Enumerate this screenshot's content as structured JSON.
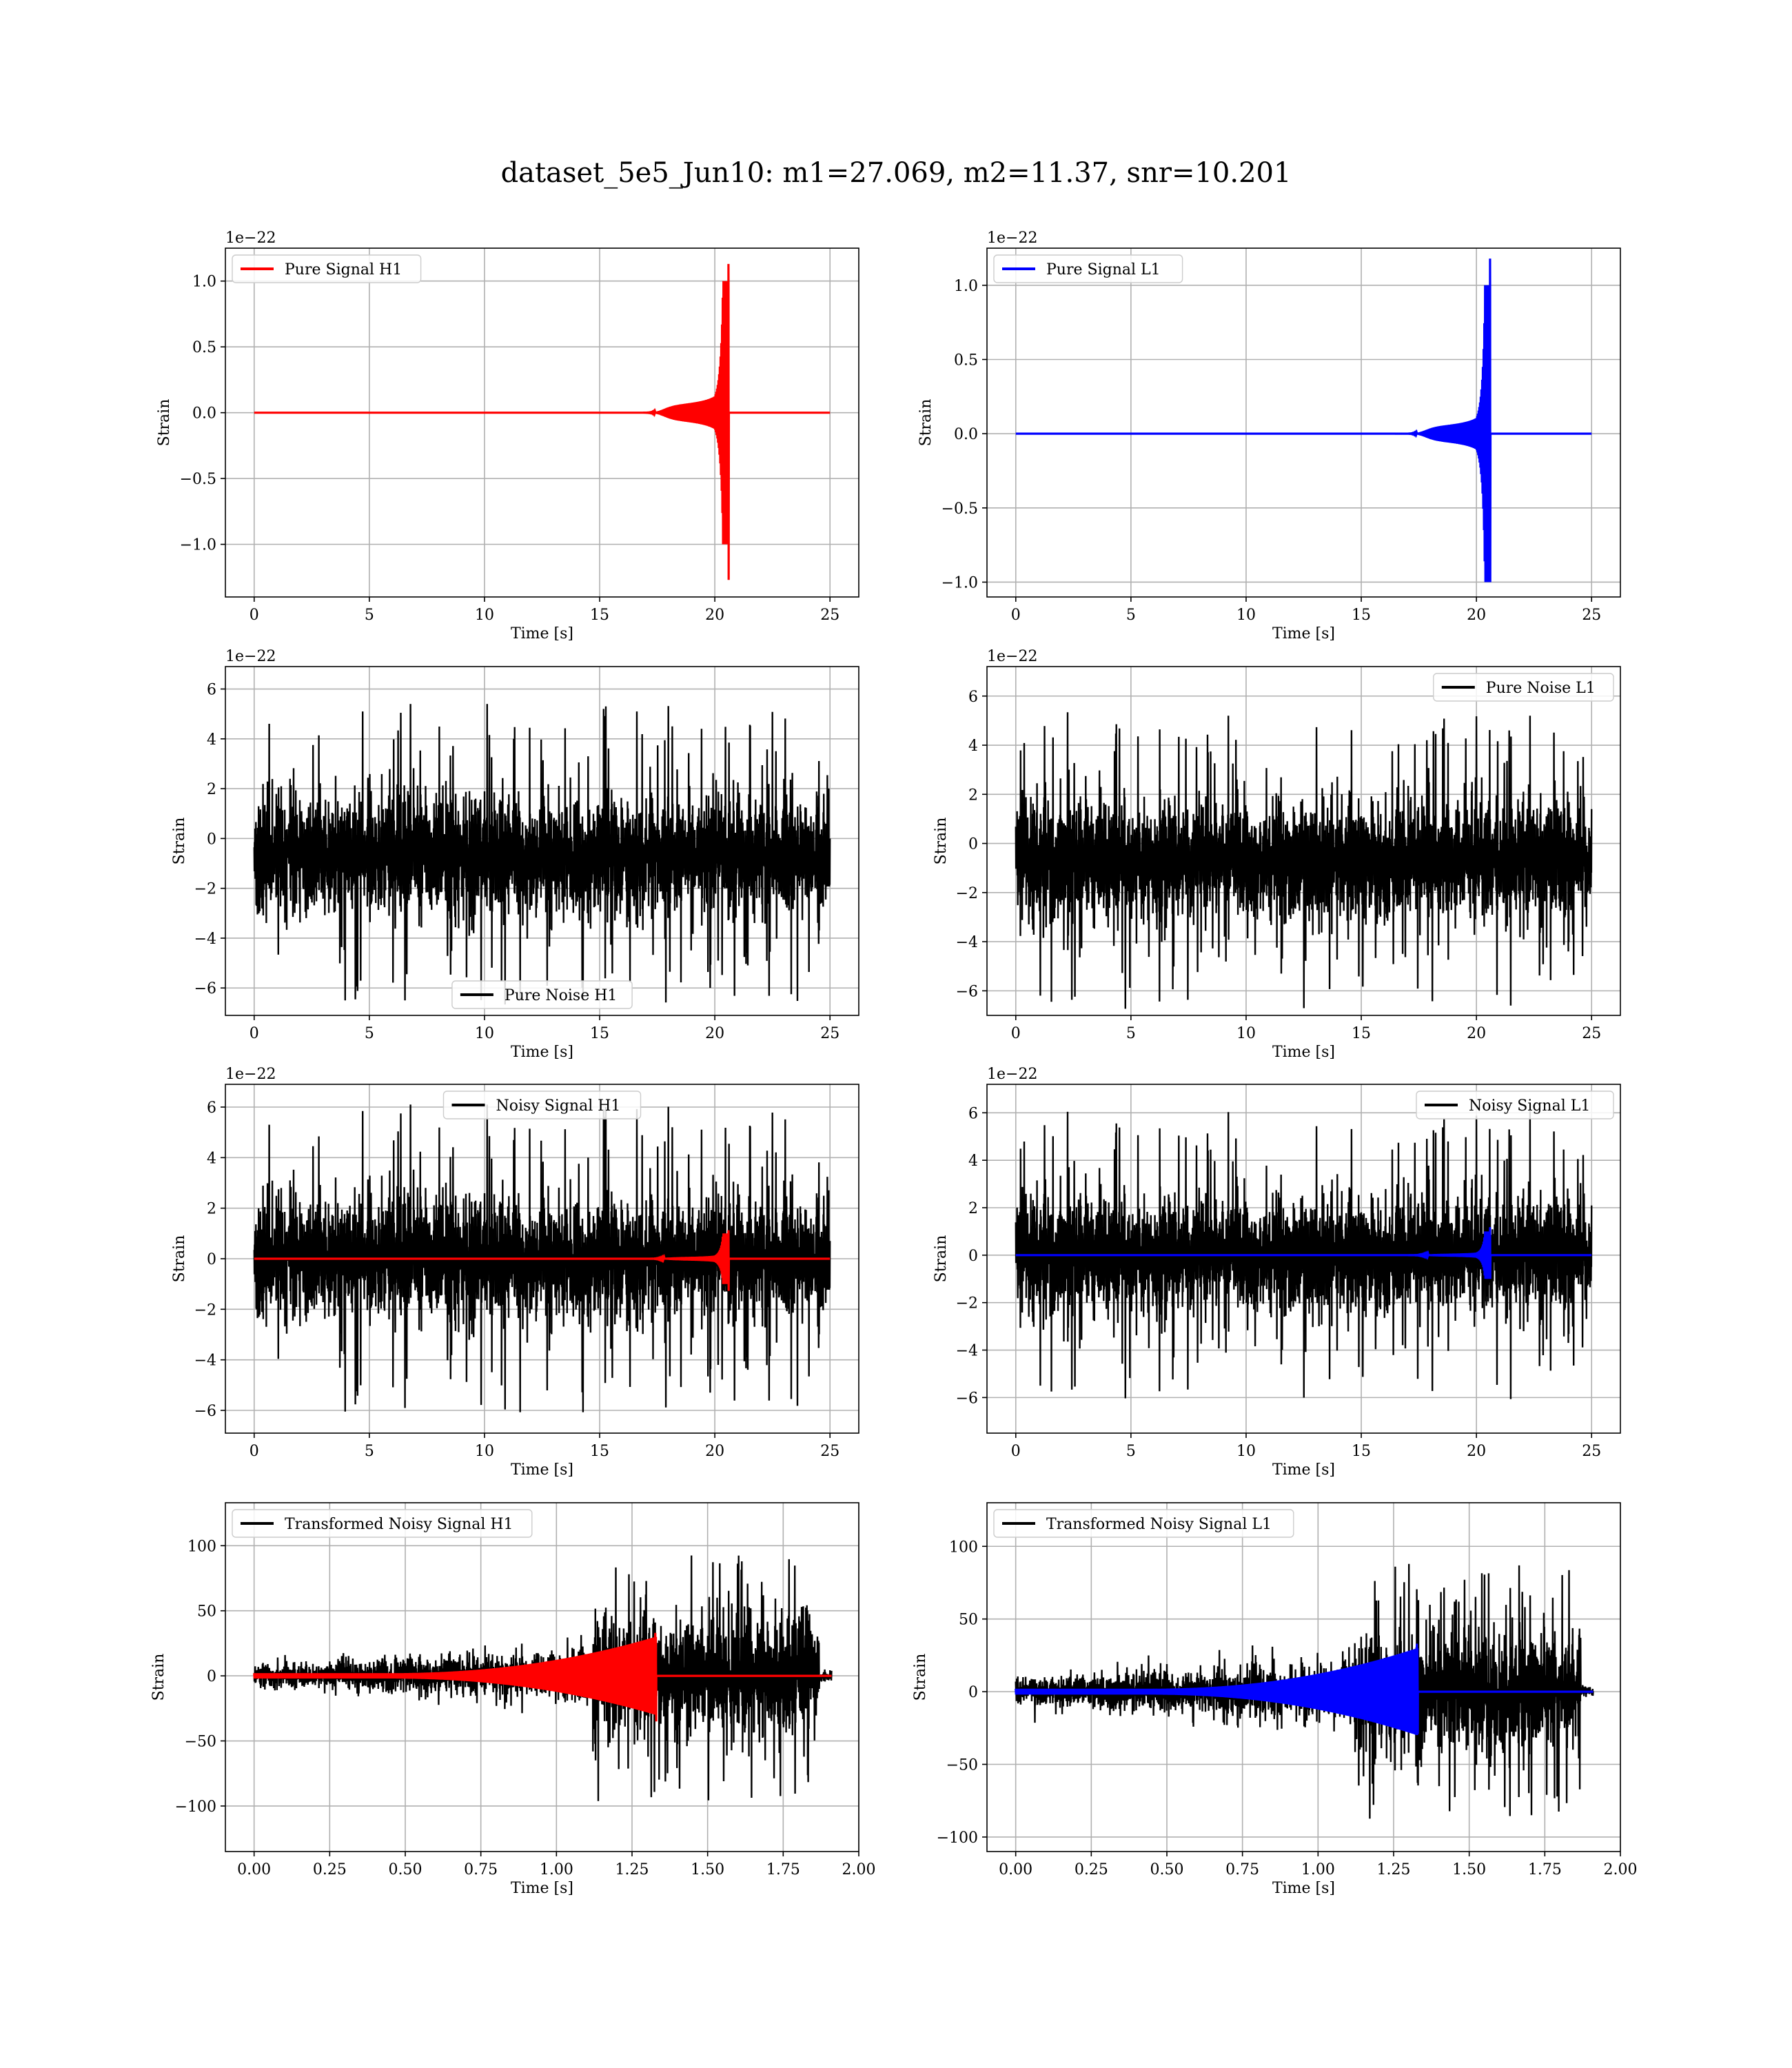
{
  "figure": {
    "title": "dataset_5e5_Jun10: m1=27.069, m2=11.37, snr=10.201"
  },
  "chart_data": [
    {
      "type": "line",
      "id": "pure-signal-h1",
      "xlabel": "Time [s]",
      "ylabel": "Strain",
      "offset_text": "1e−22",
      "xlim": [
        -1.25,
        26.25
      ],
      "ylim": [
        -1.4,
        1.25
      ],
      "xticks": [
        0,
        5,
        10,
        15,
        20,
        25
      ],
      "xtick_labels": [
        "0",
        "5",
        "10",
        "15",
        "20",
        "25"
      ],
      "yticks": [
        -1.0,
        -0.5,
        0.0,
        0.5,
        1.0
      ],
      "ytick_labels": [
        "−1.0",
        "−0.5",
        "0.0",
        "0.5",
        "1.0"
      ],
      "legend": {
        "position": "upper left",
        "entries": [
          {
            "label": "Pure Signal H1",
            "color": "#ff0000"
          }
        ]
      },
      "grid": true,
      "series": [
        {
          "name": "Pure Signal H1",
          "color": "#ff0000",
          "kind": "chirp",
          "x_start": 0,
          "x_end": 25,
          "t_merge": 20.6,
          "peak_pos": 1.13,
          "peak_neg": -1.27,
          "plateau": 0.26
        }
      ]
    },
    {
      "type": "line",
      "id": "pure-signal-l1",
      "xlabel": "Time [s]",
      "ylabel": "Strain",
      "offset_text": "1e−22",
      "xlim": [
        -1.25,
        26.25
      ],
      "ylim": [
        -1.1,
        1.25
      ],
      "xticks": [
        0,
        5,
        10,
        15,
        20,
        25
      ],
      "xtick_labels": [
        "0",
        "5",
        "10",
        "15",
        "20",
        "25"
      ],
      "yticks": [
        -1.0,
        -0.5,
        0.0,
        0.5,
        1.0
      ],
      "ytick_labels": [
        "−1.0",
        "−0.5",
        "0.0",
        "0.5",
        "1.0"
      ],
      "legend": {
        "position": "upper left",
        "entries": [
          {
            "label": "Pure Signal L1",
            "color": "#0000ff"
          }
        ]
      },
      "grid": true,
      "series": [
        {
          "name": "Pure Signal L1",
          "color": "#0000ff",
          "kind": "chirp",
          "x_start": 0,
          "x_end": 25,
          "t_merge": 20.6,
          "peak_pos": 1.18,
          "peak_neg": -1.0,
          "plateau": 0.24
        }
      ]
    },
    {
      "type": "line",
      "id": "pure-noise-h1",
      "xlabel": "Time [s]",
      "ylabel": "Strain",
      "offset_text": "1e−22",
      "xlim": [
        -1.25,
        26.25
      ],
      "ylim": [
        -7.1,
        6.9
      ],
      "xticks": [
        0,
        5,
        10,
        15,
        20,
        25
      ],
      "xtick_labels": [
        "0",
        "5",
        "10",
        "15",
        "20",
        "25"
      ],
      "yticks": [
        -6,
        -4,
        -2,
        0,
        2,
        4,
        6
      ],
      "ytick_labels": [
        "−6",
        "−4",
        "−2",
        "0",
        "2",
        "4",
        "6"
      ],
      "legend": {
        "position": "lower center",
        "entries": [
          {
            "label": "Pure Noise H1",
            "color": "#000000"
          }
        ]
      },
      "grid": true,
      "series": [
        {
          "name": "Pure Noise H1",
          "color": "#000000",
          "kind": "noise",
          "x_start": 0,
          "x_end": 25,
          "core": 3.6,
          "max": 6.2,
          "min": -6.5,
          "center": -0.7,
          "seed": 11
        }
      ]
    },
    {
      "type": "line",
      "id": "pure-noise-l1",
      "xlabel": "Time [s]",
      "ylabel": "Strain",
      "offset_text": "1e−22",
      "xlim": [
        -1.25,
        26.25
      ],
      "ylim": [
        -7.0,
        7.2
      ],
      "xticks": [
        0,
        5,
        10,
        15,
        20,
        25
      ],
      "xtick_labels": [
        "0",
        "5",
        "10",
        "15",
        "20",
        "25"
      ],
      "yticks": [
        -6,
        -4,
        -2,
        0,
        2,
        4,
        6
      ],
      "ytick_labels": [
        "−6",
        "−4",
        "−2",
        "0",
        "2",
        "4",
        "6"
      ],
      "legend": {
        "position": "upper right",
        "entries": [
          {
            "label": "Pure Noise L1",
            "color": "#000000"
          }
        ]
      },
      "grid": true,
      "series": [
        {
          "name": "Pure Noise L1",
          "color": "#000000",
          "kind": "noise",
          "x_start": 0,
          "x_end": 25,
          "core": 3.6,
          "max": 6.5,
          "min": -6.6,
          "center": -0.7,
          "seed": 23
        }
      ]
    },
    {
      "type": "line",
      "id": "noisy-signal-h1",
      "xlabel": "Time [s]",
      "ylabel": "Strain",
      "offset_text": "1e−22",
      "xlim": [
        -1.25,
        26.25
      ],
      "ylim": [
        -6.9,
        6.9
      ],
      "xticks": [
        0,
        5,
        10,
        15,
        20,
        25
      ],
      "xtick_labels": [
        "0",
        "5",
        "10",
        "15",
        "20",
        "25"
      ],
      "yticks": [
        -6,
        -4,
        -2,
        0,
        2,
        4,
        6
      ],
      "ytick_labels": [
        "−6",
        "−4",
        "−2",
        "0",
        "2",
        "4",
        "6"
      ],
      "legend": {
        "position": "upper center",
        "entries": [
          {
            "label": "Noisy Signal H1",
            "color": "#000000"
          }
        ]
      },
      "grid": true,
      "series": [
        {
          "name": "Noisy Signal H1",
          "color": "#000000",
          "kind": "noise",
          "x_start": 0,
          "x_end": 25,
          "core": 3.6,
          "max": 6.2,
          "min": -6.2,
          "center": 0,
          "seed": 11
        },
        {
          "name": "",
          "color": "#ff0000",
          "kind": "chirp",
          "x_start": 0,
          "x_end": 25,
          "t_merge": 20.6,
          "peak_pos": 1.13,
          "peak_neg": -1.27,
          "plateau": 0.26
        }
      ]
    },
    {
      "type": "line",
      "id": "noisy-signal-l1",
      "xlabel": "Time [s]",
      "ylabel": "Strain",
      "offset_text": "1e−22",
      "xlim": [
        -1.25,
        26.25
      ],
      "ylim": [
        -7.5,
        7.2
      ],
      "xticks": [
        0,
        5,
        10,
        15,
        20,
        25
      ],
      "xtick_labels": [
        "0",
        "5",
        "10",
        "15",
        "20",
        "25"
      ],
      "yticks": [
        -6,
        -4,
        -2,
        0,
        2,
        4,
        6
      ],
      "ytick_labels": [
        "−6",
        "−4",
        "−2",
        "0",
        "2",
        "4",
        "6"
      ],
      "legend": {
        "position": "upper right",
        "entries": [
          {
            "label": "Noisy Signal L1",
            "color": "#000000"
          }
        ]
      },
      "grid": true,
      "series": [
        {
          "name": "Noisy Signal L1",
          "color": "#000000",
          "kind": "noise",
          "x_start": 0,
          "x_end": 25,
          "core": 3.6,
          "max": 6.5,
          "min": -6.6,
          "center": 0,
          "seed": 23
        },
        {
          "name": "",
          "color": "#0000ff",
          "kind": "chirp",
          "x_start": 0,
          "x_end": 25,
          "t_merge": 20.6,
          "peak_pos": 1.18,
          "peak_neg": -1.0,
          "plateau": 0.24
        }
      ]
    },
    {
      "type": "line",
      "id": "transformed-noisy-signal-h1",
      "xlabel": "Time [s]",
      "ylabel": "Strain",
      "offset_text": "",
      "xlim": [
        -0.095,
        2.0
      ],
      "ylim": [
        -135,
        133
      ],
      "xticks": [
        0.0,
        0.25,
        0.5,
        0.75,
        1.0,
        1.25,
        1.5,
        1.75,
        2.0
      ],
      "xtick_labels": [
        "0.00",
        "0.25",
        "0.50",
        "0.75",
        "1.00",
        "1.25",
        "1.50",
        "1.75",
        "2.00"
      ],
      "yticks": [
        -100,
        -50,
        0,
        50,
        100
      ],
      "ytick_labels": [
        "−100",
        "−50",
        "0",
        "50",
        "100"
      ],
      "legend": {
        "position": "upper left",
        "entries": [
          {
            "label": "Transformed Noisy Signal H1",
            "color": "#000000"
          }
        ]
      },
      "grid": true,
      "series": [
        {
          "name": "Transformed Noisy Signal H1",
          "color": "#000000",
          "kind": "whitened",
          "x_start": 0,
          "x_end": 1.91,
          "t_jump": 1.12,
          "t_end_loud": 1.87,
          "low": 8,
          "high": 100,
          "spike_max": 120,
          "spike_min": -122,
          "seed": 5
        },
        {
          "name": "",
          "color": "#ff0000",
          "kind": "wchirp",
          "x_start": 0,
          "x_end": 1.91,
          "t_merge": 1.33,
          "peak_pos": 33,
          "peak_neg": -35
        }
      ]
    },
    {
      "type": "line",
      "id": "transformed-noisy-signal-l1",
      "xlabel": "Time [s]",
      "ylabel": "Strain",
      "offset_text": "",
      "xlim": [
        -0.095,
        2.0
      ],
      "ylim": [
        -110,
        130
      ],
      "xticks": [
        0.0,
        0.25,
        0.5,
        0.75,
        1.0,
        1.25,
        1.5,
        1.75,
        2.0
      ],
      "xtick_labels": [
        "0.00",
        "0.25",
        "0.50",
        "0.75",
        "1.00",
        "1.25",
        "1.50",
        "1.75",
        "2.00"
      ],
      "yticks": [
        -100,
        -50,
        0,
        50,
        100
      ],
      "ytick_labels": [
        "−100",
        "−50",
        "0",
        "50",
        "100"
      ],
      "legend": {
        "position": "upper left",
        "entries": [
          {
            "label": "Transformed Noisy Signal L1",
            "color": "#000000"
          }
        ]
      },
      "grid": true,
      "series": [
        {
          "name": "Transformed Noisy Signal L1",
          "color": "#000000",
          "kind": "whitened",
          "x_start": 0,
          "x_end": 1.91,
          "t_jump": 1.12,
          "t_end_loud": 1.87,
          "low": 9,
          "high": 88,
          "spike_max": 118,
          "spike_min": -95,
          "seed": 9
        },
        {
          "name": "",
          "color": "#0000ff",
          "kind": "wchirp",
          "x_start": 0,
          "x_end": 1.91,
          "t_merge": 1.33,
          "peak_pos": 33,
          "peak_neg": -29
        }
      ]
    }
  ]
}
